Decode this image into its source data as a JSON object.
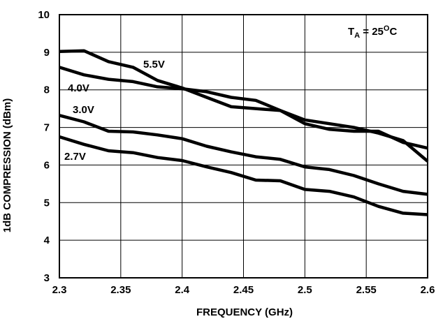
{
  "chart_data": {
    "type": "line",
    "xlabel": "FREQUENCY (GHz)",
    "ylabel": "1dB COMPRESSION (dBm)",
    "xlim": [
      2.3,
      2.6
    ],
    "ylim": [
      3,
      10
    ],
    "xticks": [
      "2.3",
      "2.35",
      "2.4",
      "2.45",
      "2.5",
      "2.55",
      "2.6"
    ],
    "yticks": [
      "3",
      "4",
      "5",
      "6",
      "7",
      "8",
      "9",
      "10"
    ],
    "grid": true,
    "annotation": {
      "main": "T",
      "sub": "A",
      "equals": " = 25",
      "sup": "O",
      "unit": "C"
    },
    "colors": {
      "line": "#000000",
      "grid": "#000000",
      "background": "#ffffff"
    },
    "series": [
      {
        "name": "5.5V",
        "x": [
          2.3,
          2.32,
          2.34,
          2.36,
          2.38,
          2.4,
          2.42,
          2.44,
          2.46,
          2.48,
          2.5,
          2.52,
          2.54,
          2.56,
          2.58,
          2.6
        ],
        "values": [
          9.02,
          9.04,
          8.75,
          8.6,
          8.25,
          8.05,
          7.8,
          7.55,
          7.5,
          7.45,
          7.2,
          7.1,
          7.0,
          6.85,
          6.65,
          6.1
        ]
      },
      {
        "name": "4.0V",
        "x": [
          2.3,
          2.32,
          2.34,
          2.36,
          2.38,
          2.4,
          2.42,
          2.44,
          2.46,
          2.48,
          2.5,
          2.52,
          2.54,
          2.56,
          2.58,
          2.6
        ],
        "values": [
          8.6,
          8.4,
          8.28,
          8.22,
          8.08,
          8.03,
          7.95,
          7.8,
          7.72,
          7.45,
          7.1,
          6.95,
          6.9,
          6.9,
          6.6,
          6.45
        ]
      },
      {
        "name": "3.0V",
        "x": [
          2.3,
          2.32,
          2.34,
          2.36,
          2.38,
          2.4,
          2.42,
          2.44,
          2.46,
          2.48,
          2.5,
          2.52,
          2.54,
          2.56,
          2.58,
          2.6
        ],
        "values": [
          7.32,
          7.15,
          6.9,
          6.88,
          6.8,
          6.7,
          6.5,
          6.35,
          6.22,
          6.15,
          5.95,
          5.88,
          5.72,
          5.5,
          5.3,
          5.22
        ]
      },
      {
        "name": "2.7V",
        "x": [
          2.3,
          2.32,
          2.34,
          2.36,
          2.38,
          2.4,
          2.42,
          2.44,
          2.46,
          2.48,
          2.5,
          2.52,
          2.54,
          2.56,
          2.58,
          2.6
        ],
        "values": [
          6.75,
          6.55,
          6.38,
          6.33,
          6.2,
          6.12,
          5.95,
          5.8,
          5.6,
          5.58,
          5.35,
          5.3,
          5.15,
          4.9,
          4.72,
          4.68
        ]
      }
    ]
  }
}
